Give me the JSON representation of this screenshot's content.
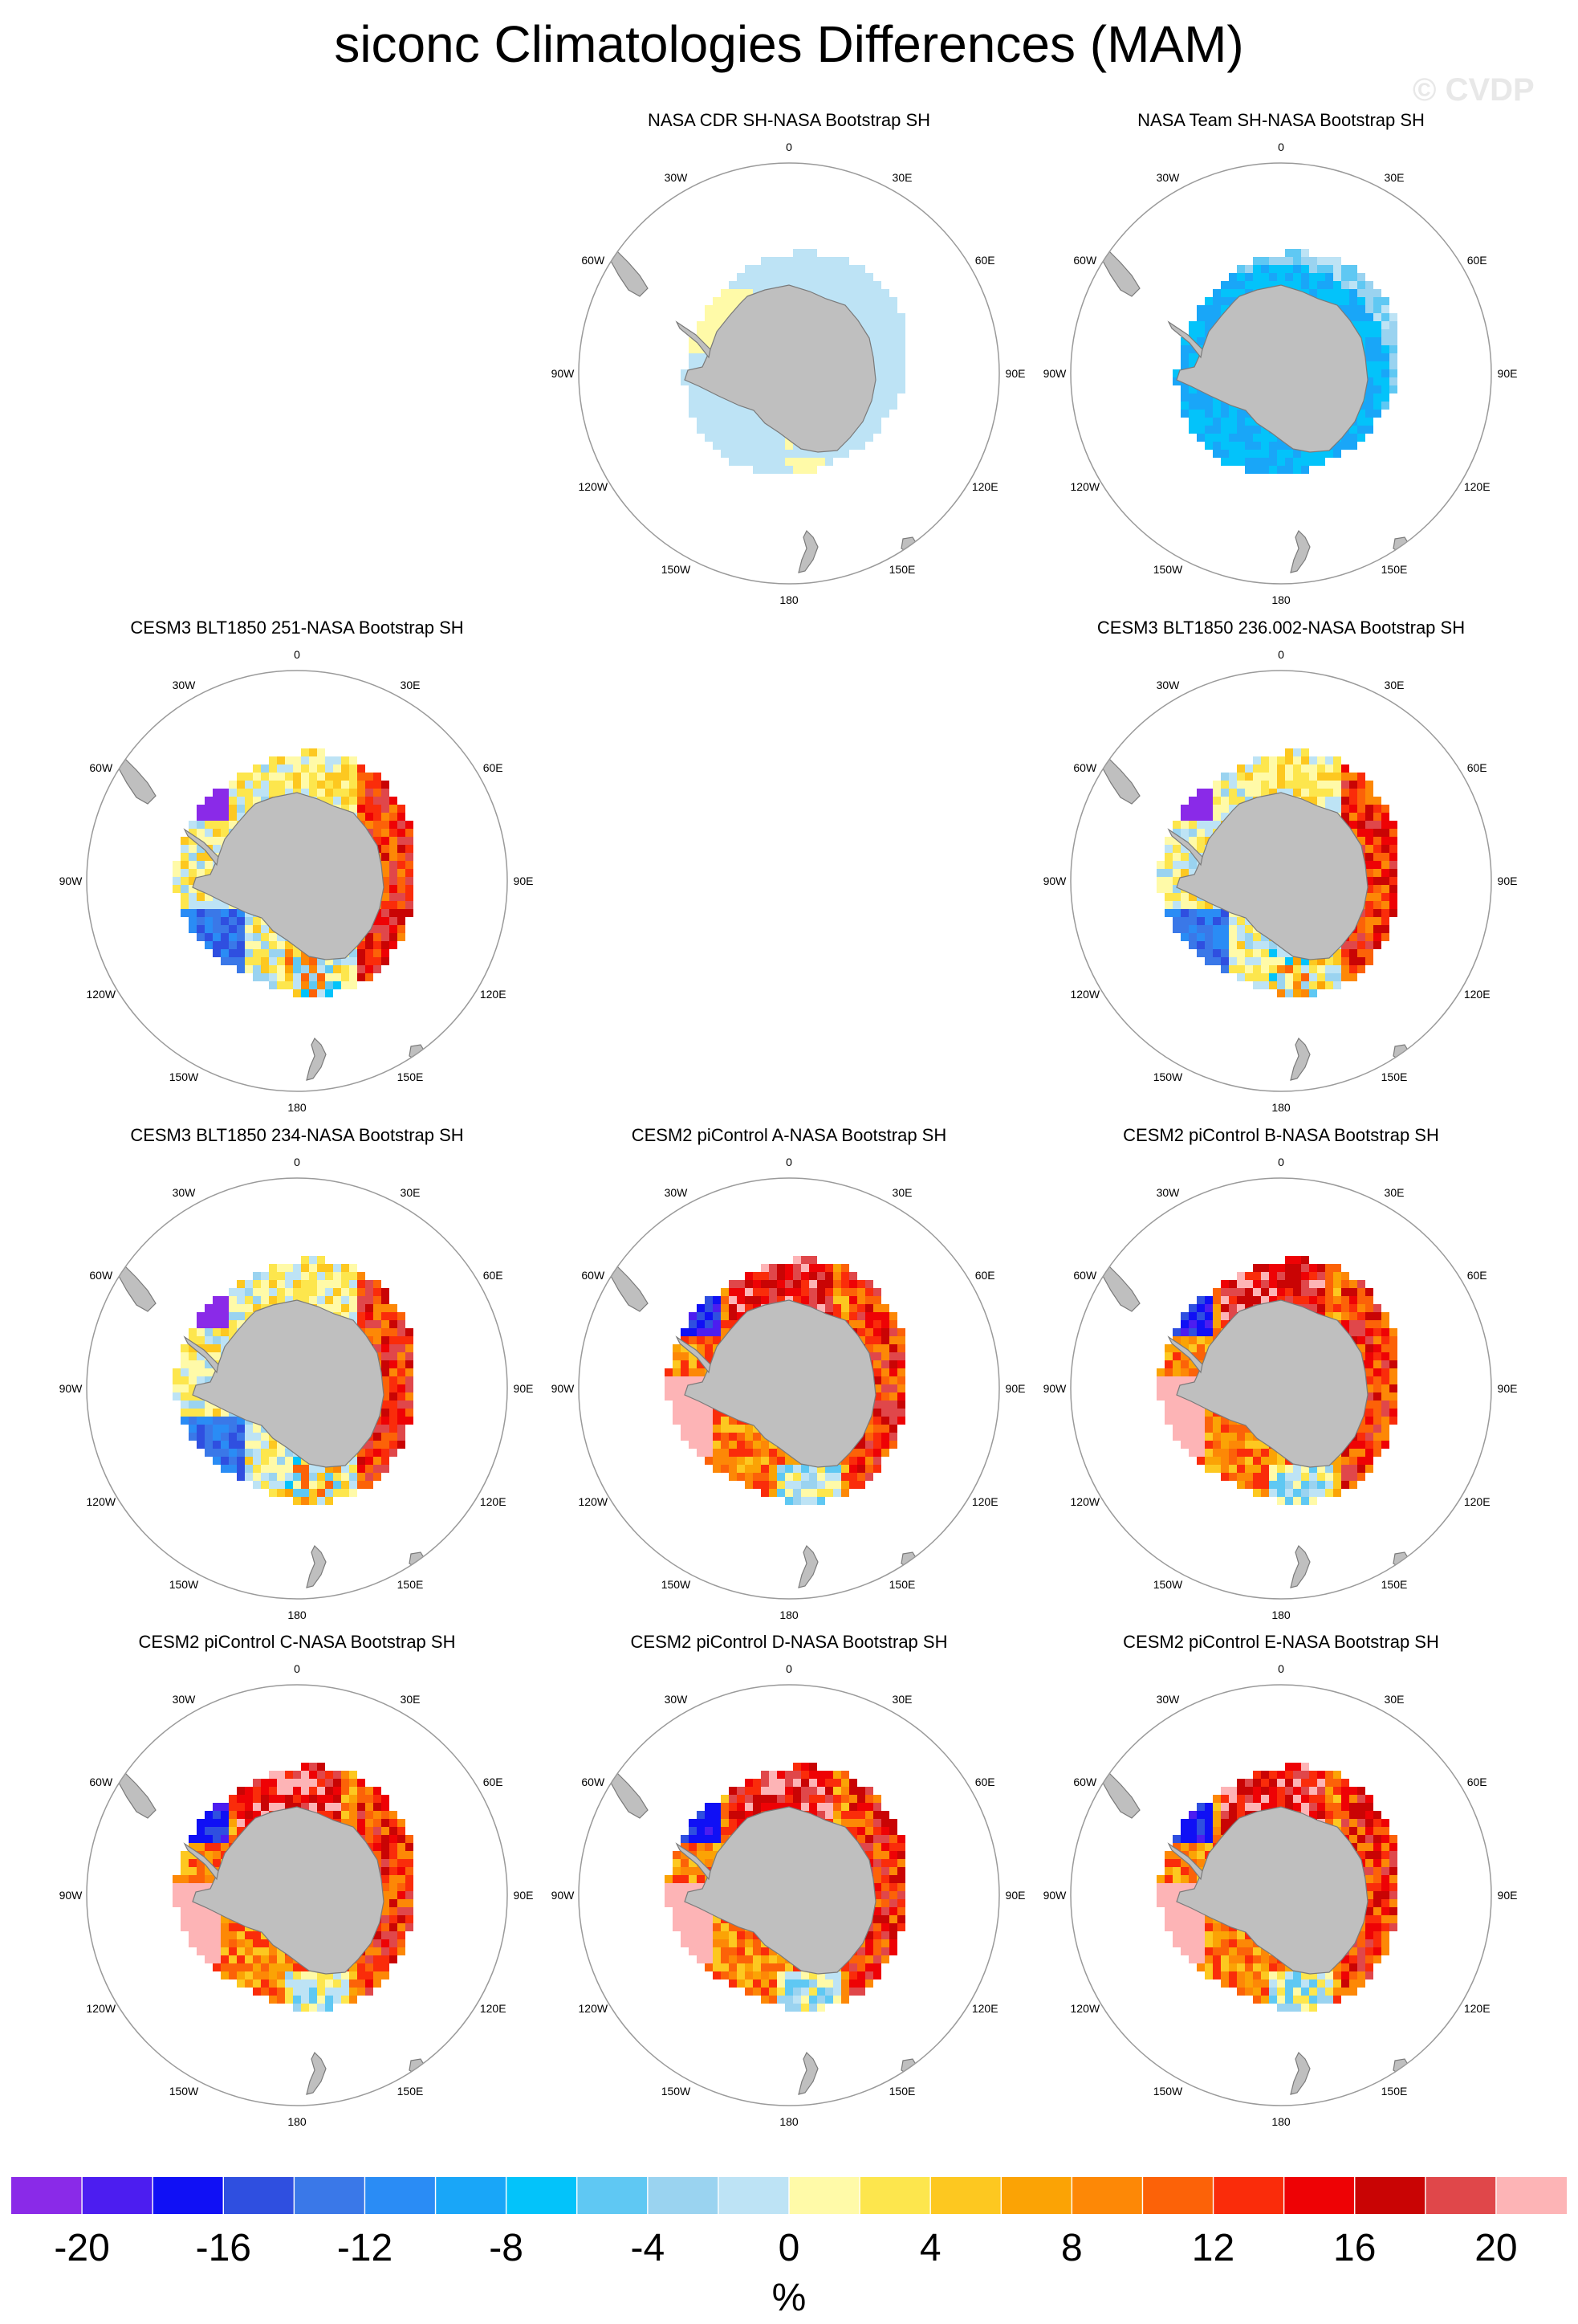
{
  "title": "siconc Climatologies Differences (MAM)",
  "watermark": "© CVDP",
  "colors": {
    "land": "#bfbfbf",
    "land_outline": "#7a7a7a",
    "circle": "#9a9a9a",
    "neutral_neg": "#bde3f5",
    "neutral_pos": "#fffaa8"
  },
  "chart_data": {
    "type": "polar_map_grid",
    "variable": "siconc",
    "season": "MAM",
    "projection": "south polar stereographic",
    "longitude_labels": [
      "0",
      "30E",
      "60E",
      "90E",
      "120E",
      "150E",
      "180",
      "150W",
      "120W",
      "90W",
      "60W",
      "30W"
    ],
    "panels": [
      {
        "id": "p1",
        "title": "NASA CDR SH-NASA Bootstrap SH",
        "row": 0,
        "col": 1,
        "pattern": "cdr"
      },
      {
        "id": "p2",
        "title": "NASA Team SH-NASA Bootstrap SH",
        "row": 0,
        "col": 2,
        "pattern": "team"
      },
      {
        "id": "p3",
        "title": "CESM3 BLT1850 251-NASA Bootstrap SH",
        "row": 1,
        "col": 0,
        "pattern": "cesm3"
      },
      {
        "id": "p4",
        "title": "CESM3 BLT1850 236.002-NASA Bootstrap SH",
        "row": 1,
        "col": 2,
        "pattern": "cesm3"
      },
      {
        "id": "p5",
        "title": "CESM3 BLT1850 234-NASA Bootstrap SH",
        "row": 2,
        "col": 0,
        "pattern": "cesm3"
      },
      {
        "id": "p6",
        "title": "CESM2 piControl A-NASA Bootstrap SH",
        "row": 2,
        "col": 1,
        "pattern": "cesm2"
      },
      {
        "id": "p7",
        "title": "CESM2 piControl B-NASA Bootstrap SH",
        "row": 2,
        "col": 2,
        "pattern": "cesm2"
      },
      {
        "id": "p8",
        "title": "CESM2 piControl C-NASA Bootstrap SH",
        "row": 3,
        "col": 0,
        "pattern": "cesm2"
      },
      {
        "id": "p9",
        "title": "CESM2 piControl D-NASA Bootstrap SH",
        "row": 3,
        "col": 1,
        "pattern": "cesm2"
      },
      {
        "id": "p10",
        "title": "CESM2 piControl E-NASA Bootstrap SH",
        "row": 3,
        "col": 2,
        "pattern": "cesm2"
      }
    ],
    "colorbar": {
      "levels": [
        -20,
        -18,
        -16,
        -14,
        -12,
        -10,
        -8,
        -6,
        -4,
        -2,
        0,
        2,
        4,
        6,
        8,
        10,
        12,
        14,
        16,
        18,
        20
      ],
      "tick_labels": [
        "-20",
        "-16",
        "-12",
        "-8",
        "-4",
        "0",
        "4",
        "8",
        "12",
        "16",
        "20"
      ],
      "colors": [
        "#8a2ae8",
        "#4c1df0",
        "#1010f5",
        "#2f4fe0",
        "#3a78e8",
        "#2a8cf5",
        "#19a6f8",
        "#03c3fa",
        "#5fc8f3",
        "#9ad3f0",
        "#bde3f5",
        "#fffaa8",
        "#fde64d",
        "#fdc820",
        "#fba305",
        "#fd8806",
        "#fc6208",
        "#fa2c0a",
        "#ee0205",
        "#c90404",
        "#e0474a",
        "#fdb4b6"
      ],
      "units": "%"
    }
  }
}
